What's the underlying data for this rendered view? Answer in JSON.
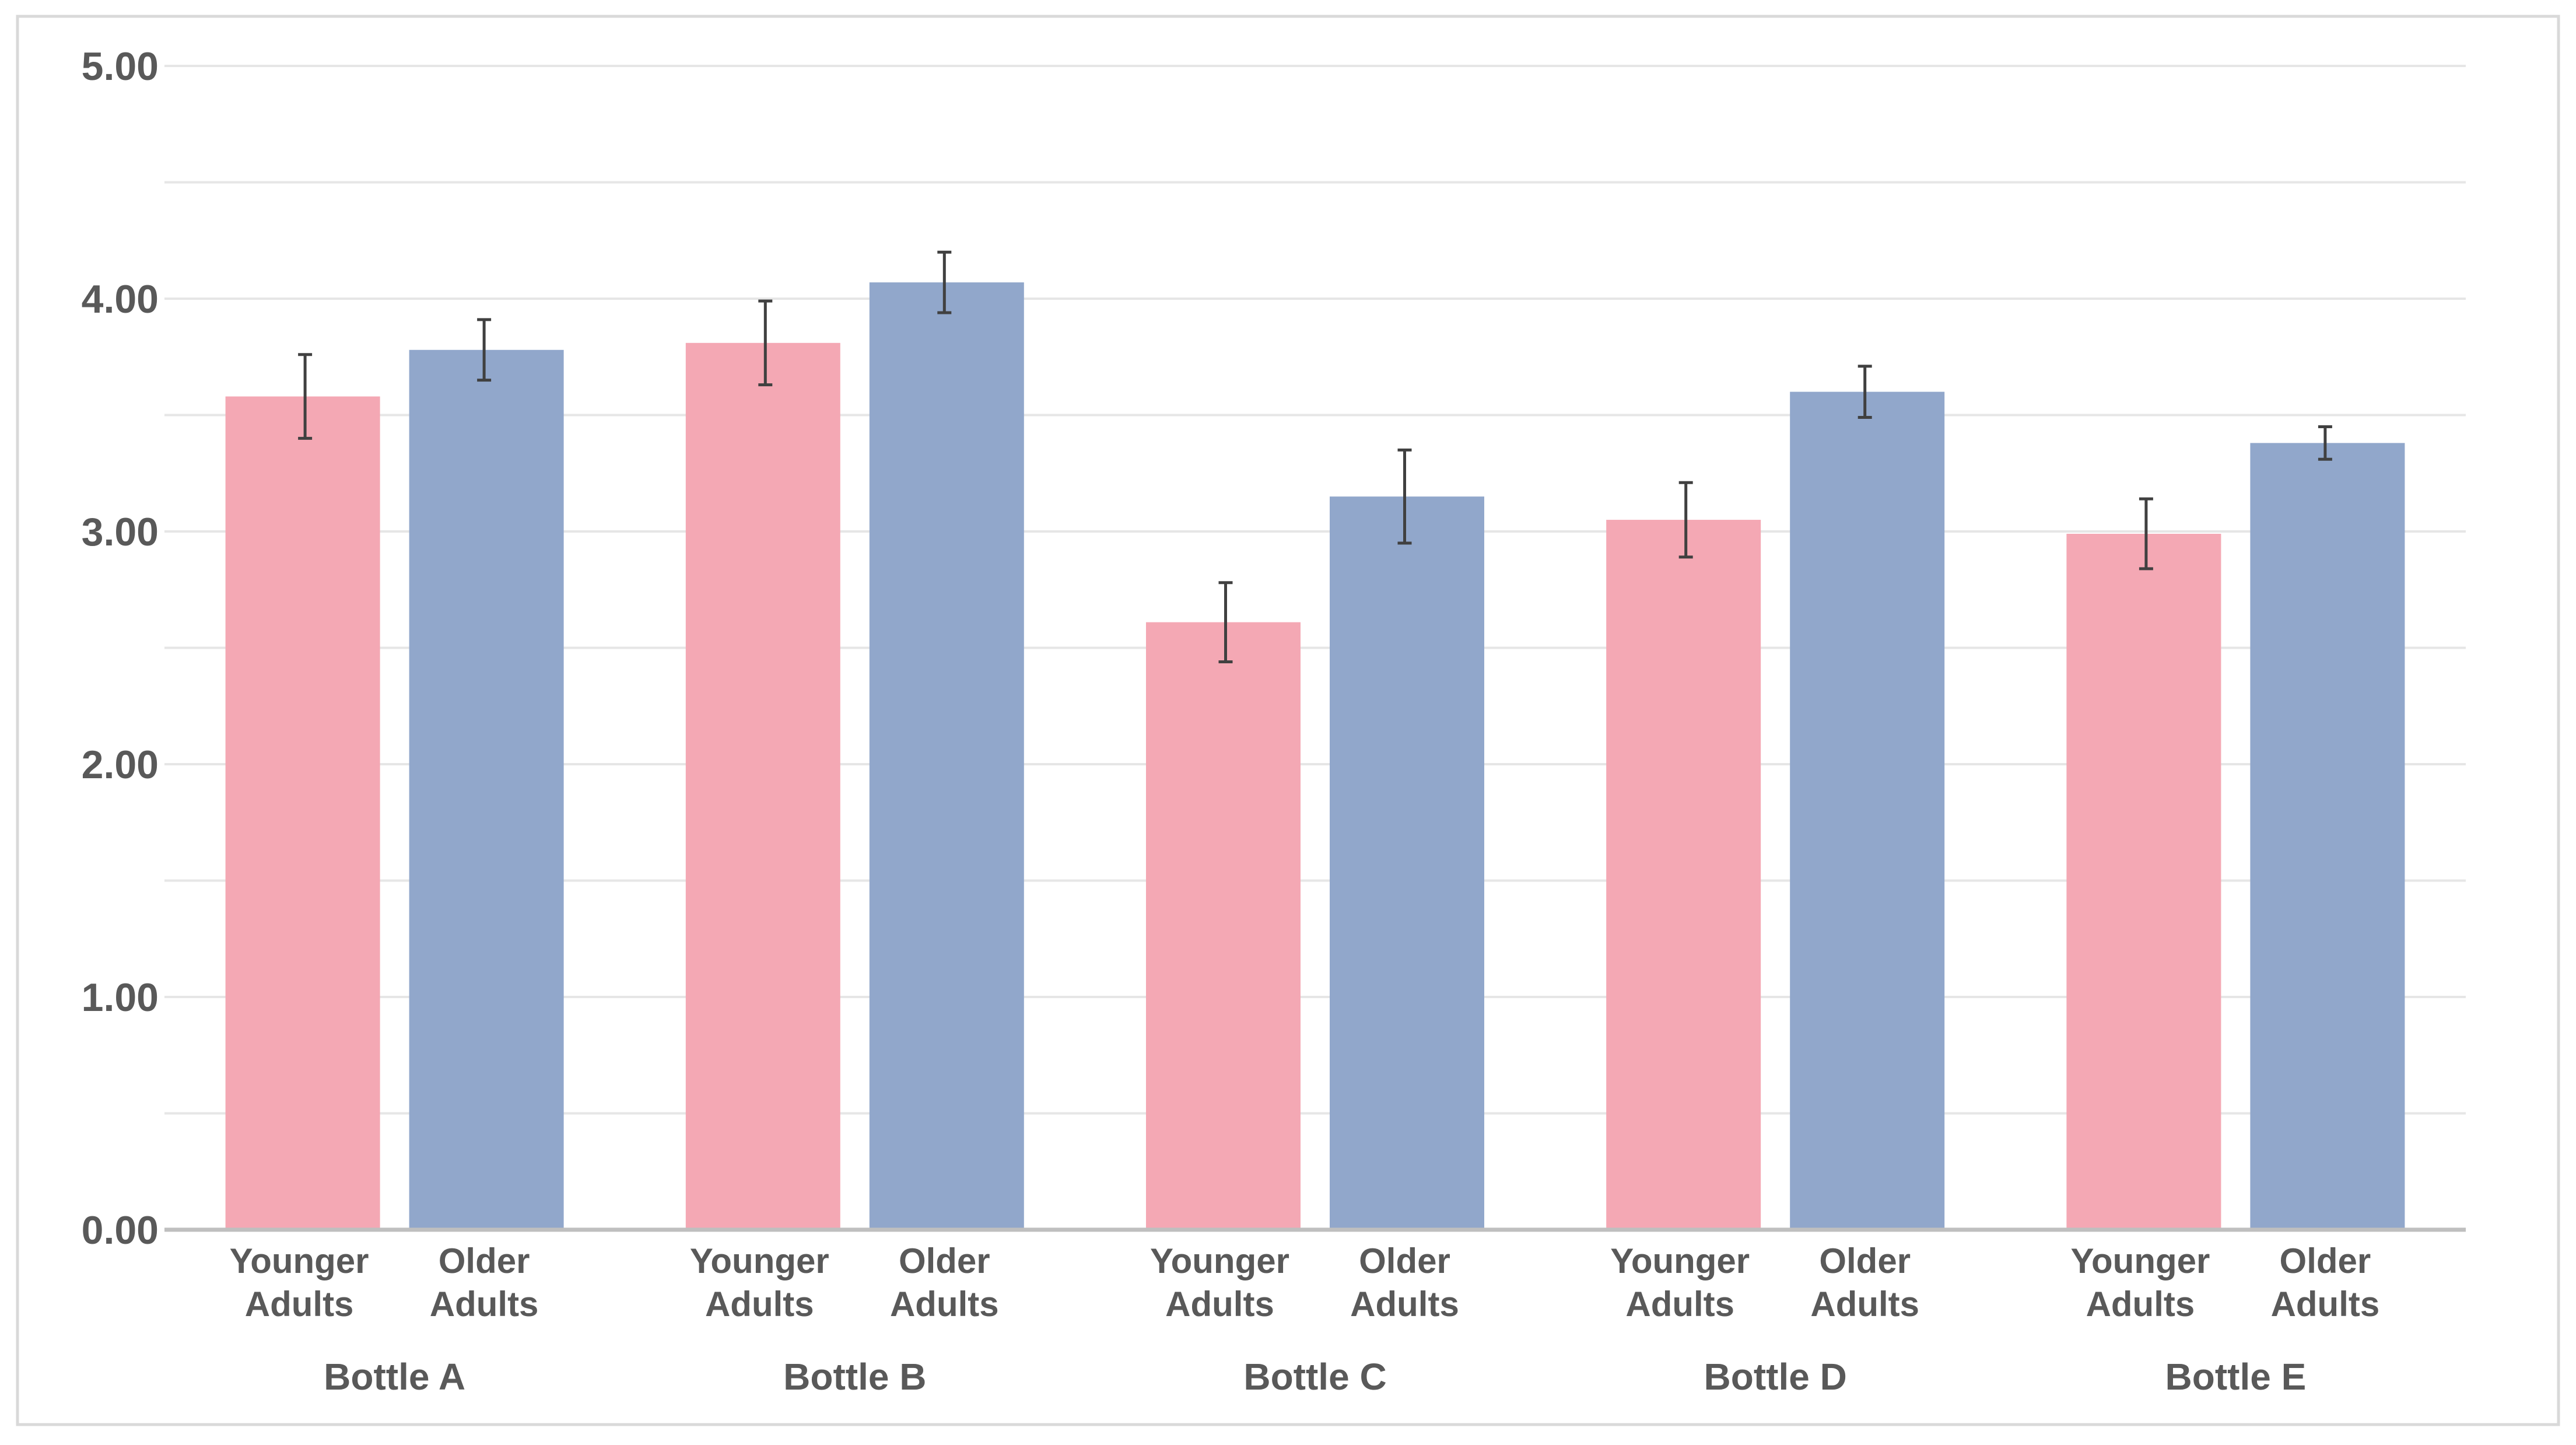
{
  "chart_data": {
    "type": "bar",
    "title": "",
    "xlabel": "",
    "ylabel": "",
    "ylim": [
      0,
      5
    ],
    "yticks": [
      "0.00",
      "1.00",
      "2.00",
      "3.00",
      "4.00",
      "5.00"
    ],
    "grid": true,
    "legend": "none",
    "categories": [
      "Bottle A",
      "Bottle B",
      "Bottle C",
      "Bottle D",
      "Bottle E"
    ],
    "series": [
      {
        "name": "Younger Adults",
        "label_lines": [
          "Younger",
          "Adults"
        ],
        "color": "#f4a8b4",
        "values": [
          3.58,
          3.81,
          2.61,
          3.05,
          2.99
        ],
        "errors": [
          0.18,
          0.18,
          0.17,
          0.16,
          0.15
        ]
      },
      {
        "name": "Older Adults",
        "label_lines": [
          "Older",
          "Adults"
        ],
        "color": "#91a7cb",
        "values": [
          3.78,
          4.07,
          3.15,
          3.6,
          3.38
        ],
        "errors": [
          0.13,
          0.13,
          0.2,
          0.11,
          0.07
        ]
      }
    ],
    "colors": {
      "grid": "#e6e6e6",
      "axis": "#bfbfbf",
      "frame": "#d9d9d9",
      "error_bar": "#404040"
    }
  }
}
